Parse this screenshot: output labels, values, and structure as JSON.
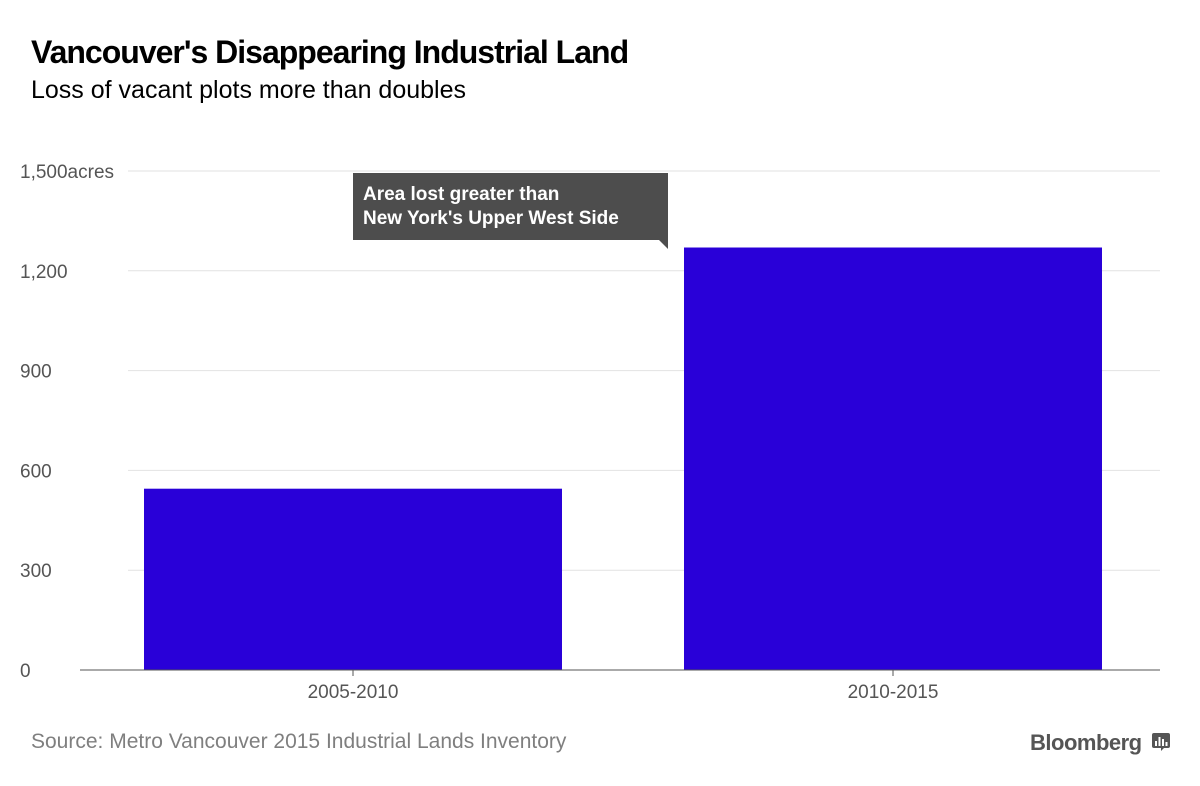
{
  "chart_data": {
    "type": "bar",
    "title": "Vancouver's Disappearing Industrial Land",
    "subtitle": "Loss of vacant plots more than doubles",
    "categories": [
      "2005-2010",
      "2010-2015"
    ],
    "values": [
      545,
      1270
    ],
    "ylim": [
      0,
      1500
    ],
    "yticks": [
      0,
      300,
      600,
      900,
      1200,
      1500
    ],
    "ytick_labels": [
      "0",
      "300",
      "600",
      "900",
      "1,200",
      "1,500acres"
    ],
    "xlabel": "",
    "ylabel": "",
    "bar_color": "#2900d8",
    "grid": true,
    "annotation": {
      "lines": [
        "Area lost greater than",
        "New York's Upper West Side"
      ],
      "target_category": "2010-2015",
      "background": "#4d4d4d"
    }
  },
  "footer": {
    "source": "Source: Metro Vancouver 2015 Industrial Lands Inventory",
    "brand": "Bloomberg",
    "brand_icon": "bloomberg-chart-icon"
  },
  "colors": {
    "grid": "#e2e2e2",
    "axis": "#555555",
    "tick_text": "#555555"
  }
}
